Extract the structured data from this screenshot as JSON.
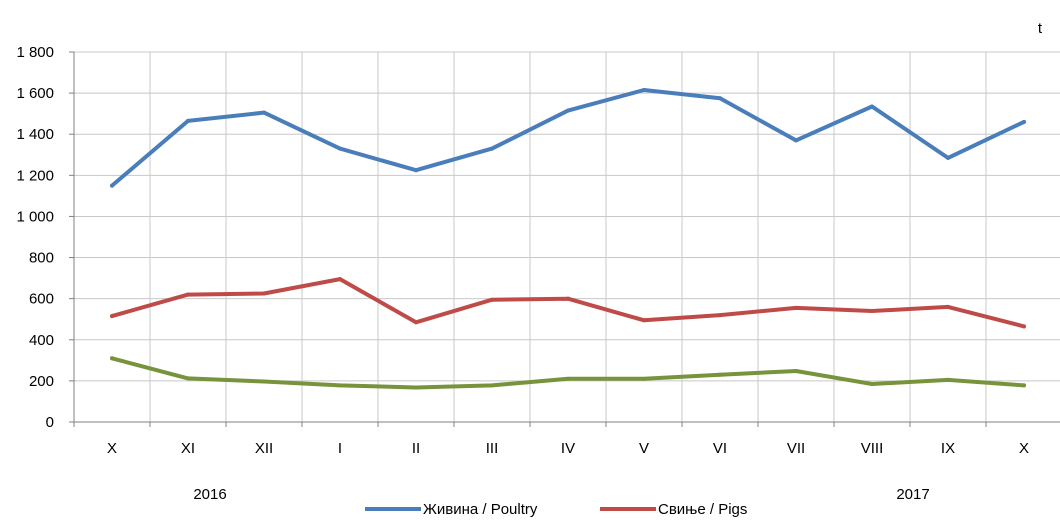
{
  "chart_data": {
    "type": "line",
    "unit_label": "t",
    "categories": [
      "X",
      "XI",
      "XII",
      "I",
      "II",
      "III",
      "IV",
      "V",
      "VI",
      "VII",
      "VIII",
      "IX",
      "X"
    ],
    "year_labels": [
      "2016",
      "2017"
    ],
    "ylim": [
      0,
      1800
    ],
    "yticks": [
      0,
      200,
      400,
      600,
      800,
      1000,
      1200,
      1400,
      1600,
      1800
    ],
    "ytick_labels": [
      "0",
      "200",
      "400",
      "600",
      "800",
      "1 000",
      "1 200",
      "1 400",
      "1 600",
      "1 800"
    ],
    "grid": true,
    "legend_position": "bottom",
    "series": [
      {
        "name": "Живина / Poultry",
        "color": "#4a7ebb",
        "values": [
          1150,
          1465,
          1505,
          1330,
          1225,
          1330,
          1515,
          1615,
          1575,
          1370,
          1535,
          1285,
          1460
        ],
        "in_legend": true
      },
      {
        "name": "Свиње / Pigs",
        "color": "#be4b48",
        "values": [
          515,
          620,
          625,
          695,
          485,
          595,
          600,
          495,
          520,
          555,
          540,
          560,
          465
        ],
        "in_legend": true
      },
      {
        "name": "",
        "color": "#77933c",
        "values": [
          310,
          212,
          197,
          178,
          168,
          178,
          210,
          210,
          230,
          248,
          185,
          205,
          178
        ],
        "in_legend": false
      }
    ]
  }
}
